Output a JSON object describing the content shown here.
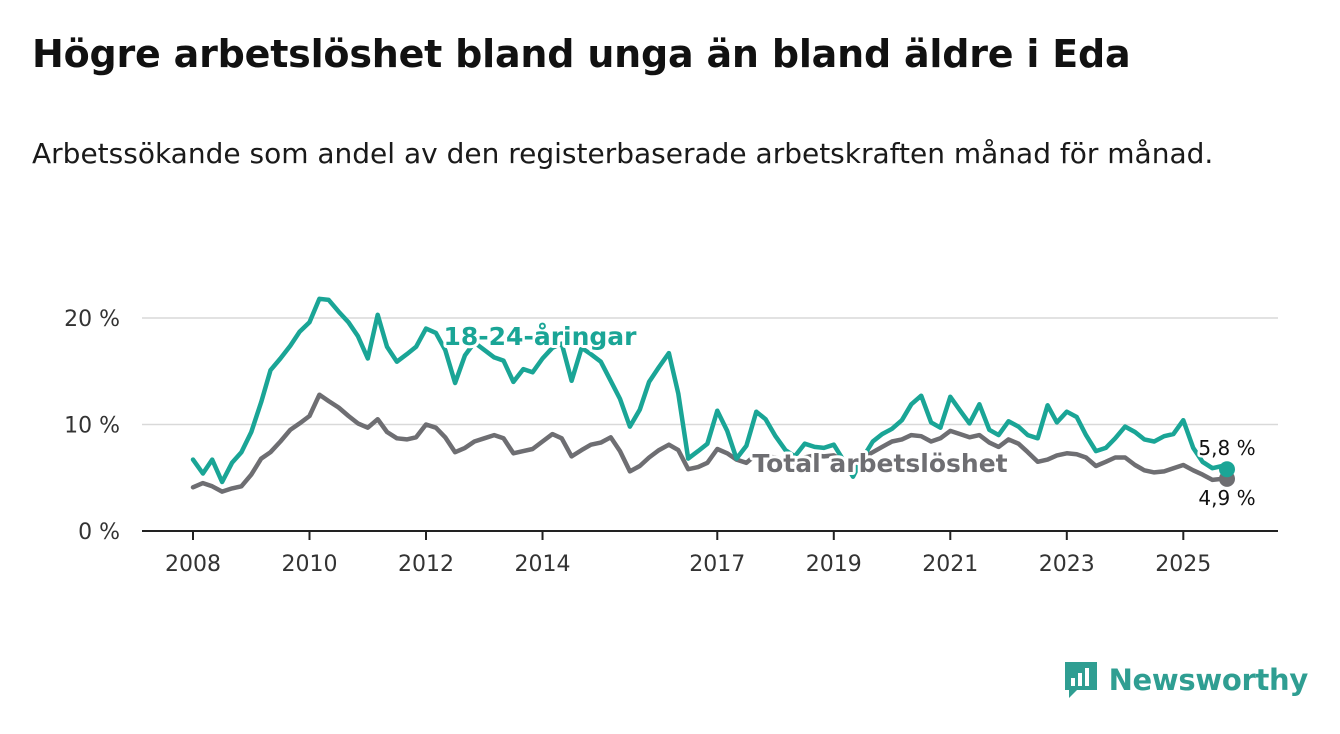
{
  "title": "Högre arbetslöshet bland unga än bland äldre i Eda",
  "subtitle": "Arbetssökande som andel av den registerbaserade arbetskraften månad för månad.",
  "brand": {
    "name": "Newsworthy",
    "icon": "newsworthy-logo-icon"
  },
  "colors": {
    "youth": "#1aa596",
    "total": "#6e6e72",
    "axis": "#222222",
    "grid": "#d9d9d9",
    "brand": "#2f9e92"
  },
  "chart_data": {
    "type": "line",
    "title": "Högre arbetslöshet bland unga än bland äldre i Eda",
    "xlabel": "",
    "ylabel": "",
    "xlim": [
      2008,
      2026.7
    ],
    "ylim": [
      0,
      20
    ],
    "x_ticks": [
      2008,
      2010,
      2012,
      2014,
      2017,
      2019,
      2021,
      2023,
      2025
    ],
    "x_tick_labels": [
      "2008",
      "2010",
      "2012",
      "2014",
      "2017",
      "2019",
      "2021",
      "2023",
      "2025"
    ],
    "y_ticks": [
      0,
      10,
      20
    ],
    "y_tick_labels": [
      "0 %",
      "10 %",
      "20 %"
    ],
    "grid": true,
    "series": [
      {
        "name": "18-24-åringar",
        "key": "youth",
        "label": "18-24-åringar",
        "end_label": "5,8 %",
        "points": [
          [
            2008.0,
            6.7
          ],
          [
            2008.17,
            5.4
          ],
          [
            2008.33,
            6.7
          ],
          [
            2008.5,
            4.6
          ],
          [
            2008.67,
            6.4
          ],
          [
            2008.83,
            7.4
          ],
          [
            2009.0,
            9.3
          ],
          [
            2009.17,
            12.1
          ],
          [
            2009.33,
            15.1
          ],
          [
            2009.5,
            16.2
          ],
          [
            2009.67,
            17.4
          ],
          [
            2009.83,
            18.7
          ],
          [
            2010.0,
            19.6
          ],
          [
            2010.17,
            21.8
          ],
          [
            2010.33,
            21.7
          ],
          [
            2010.5,
            20.6
          ],
          [
            2010.67,
            19.6
          ],
          [
            2010.83,
            18.3
          ],
          [
            2011.0,
            16.2
          ],
          [
            2011.17,
            20.3
          ],
          [
            2011.33,
            17.3
          ],
          [
            2011.5,
            15.9
          ],
          [
            2011.67,
            16.6
          ],
          [
            2011.83,
            17.3
          ],
          [
            2012.0,
            19.0
          ],
          [
            2012.17,
            18.6
          ],
          [
            2012.33,
            17.0
          ],
          [
            2012.5,
            13.9
          ],
          [
            2012.67,
            16.5
          ],
          [
            2012.83,
            17.7
          ],
          [
            2013.0,
            17.0
          ],
          [
            2013.17,
            16.3
          ],
          [
            2013.33,
            16.0
          ],
          [
            2013.5,
            14.0
          ],
          [
            2013.67,
            15.2
          ],
          [
            2013.83,
            14.9
          ],
          [
            2014.0,
            16.2
          ],
          [
            2014.17,
            17.2
          ],
          [
            2014.33,
            17.6
          ],
          [
            2014.5,
            14.1
          ],
          [
            2014.67,
            17.2
          ],
          [
            2014.83,
            16.6
          ],
          [
            2015.0,
            15.9
          ],
          [
            2015.17,
            14.1
          ],
          [
            2015.33,
            12.4
          ],
          [
            2015.5,
            9.8
          ],
          [
            2015.67,
            11.4
          ],
          [
            2015.83,
            14.0
          ],
          [
            2016.0,
            15.4
          ],
          [
            2016.17,
            16.7
          ],
          [
            2016.33,
            12.9
          ],
          [
            2016.5,
            6.8
          ],
          [
            2016.67,
            7.5
          ],
          [
            2016.83,
            8.2
          ],
          [
            2017.0,
            11.3
          ],
          [
            2017.17,
            9.4
          ],
          [
            2017.33,
            6.8
          ],
          [
            2017.5,
            8.0
          ],
          [
            2017.67,
            11.2
          ],
          [
            2017.83,
            10.5
          ],
          [
            2018.0,
            8.9
          ],
          [
            2018.17,
            7.6
          ],
          [
            2018.33,
            7.0
          ],
          [
            2018.5,
            8.2
          ],
          [
            2018.67,
            7.9
          ],
          [
            2018.83,
            7.8
          ],
          [
            2019.0,
            8.1
          ],
          [
            2019.17,
            6.6
          ],
          [
            2019.33,
            5.1
          ],
          [
            2019.5,
            6.9
          ],
          [
            2019.67,
            8.4
          ],
          [
            2019.83,
            9.1
          ],
          [
            2020.0,
            9.6
          ],
          [
            2020.17,
            10.4
          ],
          [
            2020.33,
            11.9
          ],
          [
            2020.5,
            12.7
          ],
          [
            2020.67,
            10.2
          ],
          [
            2020.83,
            9.7
          ],
          [
            2021.0,
            12.6
          ],
          [
            2021.17,
            11.3
          ],
          [
            2021.33,
            10.1
          ],
          [
            2021.5,
            11.9
          ],
          [
            2021.67,
            9.5
          ],
          [
            2021.83,
            9.0
          ],
          [
            2022.0,
            10.3
          ],
          [
            2022.17,
            9.8
          ],
          [
            2022.33,
            9.0
          ],
          [
            2022.5,
            8.7
          ],
          [
            2022.67,
            11.8
          ],
          [
            2022.83,
            10.2
          ],
          [
            2023.0,
            11.2
          ],
          [
            2023.17,
            10.7
          ],
          [
            2023.33,
            9.0
          ],
          [
            2023.5,
            7.5
          ],
          [
            2023.67,
            7.8
          ],
          [
            2023.83,
            8.7
          ],
          [
            2024.0,
            9.8
          ],
          [
            2024.17,
            9.3
          ],
          [
            2024.33,
            8.6
          ],
          [
            2024.5,
            8.4
          ],
          [
            2024.67,
            8.9
          ],
          [
            2024.83,
            9.1
          ],
          [
            2025.0,
            10.4
          ],
          [
            2025.17,
            7.8
          ],
          [
            2025.33,
            6.5
          ],
          [
            2025.5,
            5.9
          ],
          [
            2025.67,
            6.1
          ],
          [
            2025.75,
            5.8
          ]
        ]
      },
      {
        "name": "Total arbetslöshet",
        "key": "total",
        "label": "Total arbetslöshet",
        "end_label": "4,9 %",
        "points": [
          [
            2008.0,
            4.1
          ],
          [
            2008.17,
            4.5
          ],
          [
            2008.33,
            4.2
          ],
          [
            2008.5,
            3.7
          ],
          [
            2008.67,
            4.0
          ],
          [
            2008.83,
            4.2
          ],
          [
            2009.0,
            5.3
          ],
          [
            2009.17,
            6.8
          ],
          [
            2009.33,
            7.4
          ],
          [
            2009.5,
            8.4
          ],
          [
            2009.67,
            9.5
          ],
          [
            2009.83,
            10.1
          ],
          [
            2010.0,
            10.8
          ],
          [
            2010.17,
            12.8
          ],
          [
            2010.33,
            12.2
          ],
          [
            2010.5,
            11.6
          ],
          [
            2010.67,
            10.8
          ],
          [
            2010.83,
            10.1
          ],
          [
            2011.0,
            9.7
          ],
          [
            2011.17,
            10.5
          ],
          [
            2011.33,
            9.3
          ],
          [
            2011.5,
            8.7
          ],
          [
            2011.67,
            8.6
          ],
          [
            2011.83,
            8.8
          ],
          [
            2012.0,
            10.0
          ],
          [
            2012.17,
            9.7
          ],
          [
            2012.33,
            8.8
          ],
          [
            2012.5,
            7.4
          ],
          [
            2012.67,
            7.8
          ],
          [
            2012.83,
            8.4
          ],
          [
            2013.0,
            8.7
          ],
          [
            2013.17,
            9.0
          ],
          [
            2013.33,
            8.7
          ],
          [
            2013.5,
            7.3
          ],
          [
            2013.67,
            7.5
          ],
          [
            2013.83,
            7.7
          ],
          [
            2014.0,
            8.4
          ],
          [
            2014.17,
            9.1
          ],
          [
            2014.33,
            8.7
          ],
          [
            2014.5,
            7.0
          ],
          [
            2014.67,
            7.6
          ],
          [
            2014.83,
            8.1
          ],
          [
            2015.0,
            8.3
          ],
          [
            2015.17,
            8.8
          ],
          [
            2015.33,
            7.5
          ],
          [
            2015.5,
            5.6
          ],
          [
            2015.67,
            6.1
          ],
          [
            2015.83,
            6.9
          ],
          [
            2016.0,
            7.6
          ],
          [
            2016.17,
            8.1
          ],
          [
            2016.33,
            7.6
          ],
          [
            2016.5,
            5.8
          ],
          [
            2016.67,
            6.0
          ],
          [
            2016.83,
            6.4
          ],
          [
            2017.0,
            7.7
          ],
          [
            2017.17,
            7.3
          ],
          [
            2017.33,
            6.7
          ],
          [
            2017.5,
            6.4
          ],
          [
            2017.67,
            7.2
          ],
          [
            2017.83,
            7.0
          ],
          [
            2018.0,
            6.9
          ],
          [
            2018.17,
            6.6
          ],
          [
            2018.33,
            6.4
          ],
          [
            2018.5,
            6.9
          ],
          [
            2018.67,
            7.1
          ],
          [
            2018.83,
            7.0
          ],
          [
            2019.0,
            7.1
          ],
          [
            2019.17,
            6.6
          ],
          [
            2019.33,
            6.0
          ],
          [
            2019.5,
            6.9
          ],
          [
            2019.67,
            7.4
          ],
          [
            2019.83,
            7.9
          ],
          [
            2020.0,
            8.4
          ],
          [
            2020.17,
            8.6
          ],
          [
            2020.33,
            9.0
          ],
          [
            2020.5,
            8.9
          ],
          [
            2020.67,
            8.4
          ],
          [
            2020.83,
            8.7
          ],
          [
            2021.0,
            9.4
          ],
          [
            2021.17,
            9.1
          ],
          [
            2021.33,
            8.8
          ],
          [
            2021.5,
            9.0
          ],
          [
            2021.67,
            8.3
          ],
          [
            2021.83,
            7.9
          ],
          [
            2022.0,
            8.6
          ],
          [
            2022.17,
            8.2
          ],
          [
            2022.33,
            7.4
          ],
          [
            2022.5,
            6.5
          ],
          [
            2022.67,
            6.7
          ],
          [
            2022.83,
            7.1
          ],
          [
            2023.0,
            7.3
          ],
          [
            2023.17,
            7.2
          ],
          [
            2023.33,
            6.9
          ],
          [
            2023.5,
            6.1
          ],
          [
            2023.67,
            6.5
          ],
          [
            2023.83,
            6.9
          ],
          [
            2024.0,
            6.9
          ],
          [
            2024.17,
            6.2
          ],
          [
            2024.33,
            5.7
          ],
          [
            2024.5,
            5.5
          ],
          [
            2024.67,
            5.6
          ],
          [
            2024.83,
            5.9
          ],
          [
            2025.0,
            6.2
          ],
          [
            2025.17,
            5.7
          ],
          [
            2025.33,
            5.3
          ],
          [
            2025.5,
            4.8
          ],
          [
            2025.67,
            4.9
          ],
          [
            2025.75,
            4.9
          ]
        ]
      }
    ]
  }
}
